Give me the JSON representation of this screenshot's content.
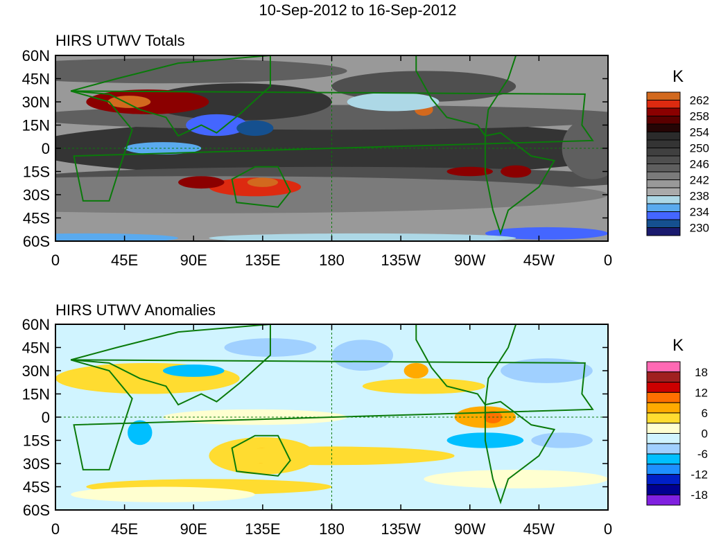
{
  "chart_data": [
    {
      "type": "heatmap",
      "suptitle": "10-Sep-2012 to 16-Sep-2012",
      "title": "HIRS UTWV Totals",
      "xlabel": "",
      "ylabel": "",
      "x_ticks": [
        "0",
        "45E",
        "90E",
        "135E",
        "180",
        "135W",
        "90W",
        "45W",
        "0"
      ],
      "y_ticks": [
        "60N",
        "45N",
        "30N",
        "15N",
        "0",
        "15S",
        "30S",
        "45S",
        "60S"
      ],
      "xlim": [
        0,
        360
      ],
      "ylim": [
        -60,
        60
      ],
      "colorbar": {
        "unit": "K",
        "levels": [
          230,
          232,
          234,
          236,
          238,
          240,
          242,
          244,
          246,
          248,
          250,
          252,
          254,
          256,
          258,
          260,
          262
        ],
        "labels": [
          "262",
          "258",
          "254",
          "250",
          "246",
          "242",
          "238",
          "234",
          "230"
        ],
        "colors": [
          "#1a1a6e",
          "#15508f",
          "#4466ff",
          "#5aaaee",
          "#add8e6",
          "#aaaaaa",
          "#999999",
          "#7b7b7b",
          "#5f5f5f",
          "#4f4f4f",
          "#404040",
          "#343434",
          "#2b2b2b",
          "#250505",
          "#5a0000",
          "#8b0000",
          "#dd2a10",
          "#d2691e"
        ]
      }
    },
    {
      "type": "heatmap",
      "title": "HIRS UTWV Anomalies",
      "x_ticks": [
        "0",
        "45E",
        "90E",
        "135E",
        "180",
        "135W",
        "90W",
        "45W",
        "0"
      ],
      "y_ticks": [
        "60N",
        "45N",
        "30N",
        "15N",
        "0",
        "15S",
        "30S",
        "45S",
        "60S"
      ],
      "xlim": [
        0,
        360
      ],
      "ylim": [
        -60,
        60
      ],
      "colorbar": {
        "unit": "K",
        "levels": [
          -18,
          -15,
          -12,
          -9,
          -6,
          -3,
          0,
          3,
          6,
          9,
          12,
          15,
          18
        ],
        "labels": [
          "18",
          "12",
          "6",
          "0",
          "-6",
          "-12",
          "-18"
        ],
        "colors": [
          "#8020e0",
          "#000090",
          "#0020c8",
          "#1e90ff",
          "#00bfff",
          "#a0d0ff",
          "#d0f4ff",
          "#ffffd0",
          "#ffdc30",
          "#ffaa00",
          "#ff7000",
          "#cc0000",
          "#a02020",
          "#ff69b4"
        ]
      }
    }
  ]
}
